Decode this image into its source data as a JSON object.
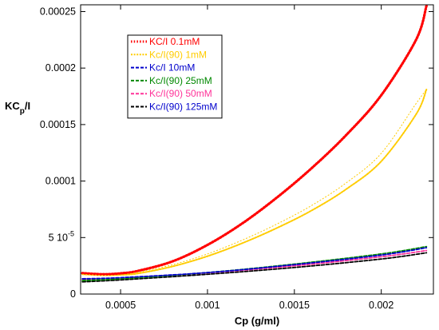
{
  "chart_data": {
    "type": "line",
    "xlabel": "Cp (g/ml)",
    "ylabel": {
      "main": "KC",
      "sub": "p",
      "suffix": "/I"
    },
    "xlim": [
      0.00027,
      0.0023
    ],
    "ylim": [
      0,
      0.000256
    ],
    "x_ticks": [
      {
        "value": 0.0005,
        "label": "0.0005"
      },
      {
        "value": 0.001,
        "label": "0.001"
      },
      {
        "value": 0.0015,
        "label": "0.0015"
      },
      {
        "value": 0.002,
        "label": "0.002"
      }
    ],
    "y_ticks": [
      {
        "value": 0,
        "label": "0"
      },
      {
        "value": 5e-05,
        "label": "5 10",
        "exp": "-5"
      },
      {
        "value": 0.0001,
        "label": "0.0001"
      },
      {
        "value": 0.00015,
        "label": "0.00015"
      },
      {
        "value": 0.0002,
        "label": "0.0002"
      },
      {
        "value": 0.00025,
        "label": "0.00025"
      }
    ],
    "grid": false,
    "legend_position": "top-left",
    "series": [
      {
        "name": "KC/I 0.1mM",
        "color": "#ff0000",
        "style": "dotted-thick",
        "x": [
          0.00028,
          0.0004,
          0.0005,
          0.0006,
          0.0008,
          0.001,
          0.0012,
          0.0014,
          0.0016,
          0.0018,
          0.002,
          0.0022,
          0.00226
        ],
        "y": [
          1.85e-05,
          1.75e-05,
          1.83e-05,
          2.05e-05,
          2.9e-05,
          4.35e-05,
          6.25e-05,
          8.55e-05,
          0.0001115,
          0.000141,
          0.000176,
          0.000225,
          0.000255
        ]
      },
      {
        "name": "Kc/I(90) 1mM",
        "color": "#ffcc00",
        "style": "dotted",
        "x": [
          0.00028,
          0.0004,
          0.0005,
          0.0006,
          0.0008,
          0.001,
          0.0012,
          0.0014,
          0.0016,
          0.0018,
          0.002,
          0.0022,
          0.00226
        ],
        "y": [
          1.75e-05,
          1.66e-05,
          1.7e-05,
          1.82e-05,
          2.45e-05,
          3.35e-05,
          4.5e-05,
          5.85e-05,
          7.4e-05,
          9.3e-05,
          0.0001175,
          0.000159,
          0.000181
        ]
      },
      {
        "name": "Kc/I 10mM",
        "color": "#0000cc",
        "style": "dashed",
        "x": [
          0.00028,
          0.0005,
          0.001,
          0.0015,
          0.002,
          0.00226
        ],
        "y": [
          1.35e-05,
          1.45e-05,
          1.9e-05,
          2.6e-05,
          3.45e-05,
          4.1e-05
        ]
      },
      {
        "name": "Kc/I(90) 25mM",
        "color": "#008800",
        "style": "dashed",
        "x": [
          0.00028,
          0.0005,
          0.001,
          0.0015,
          0.002,
          0.00226
        ],
        "y": [
          1.2e-05,
          1.35e-05,
          1.9e-05,
          2.65e-05,
          3.55e-05,
          4.2e-05
        ]
      },
      {
        "name": "Kc/I(90) 50mM",
        "color": "#ff3399",
        "style": "dashed",
        "x": [
          0.00028,
          0.0005,
          0.001,
          0.0015,
          0.002,
          0.00226
        ],
        "y": [
          1.25e-05,
          1.38e-05,
          1.88e-05,
          2.5e-05,
          3.3e-05,
          3.85e-05
        ]
      },
      {
        "name": "Kc/I(90) 125mM",
        "color": "#000000",
        "style": "dashed",
        "x": [
          0.00028,
          0.0005,
          0.001,
          0.0015,
          0.002,
          0.00226
        ],
        "y": [
          1.08e-05,
          1.25e-05,
          1.75e-05,
          2.35e-05,
          3.1e-05,
          3.65e-05
        ]
      }
    ]
  }
}
